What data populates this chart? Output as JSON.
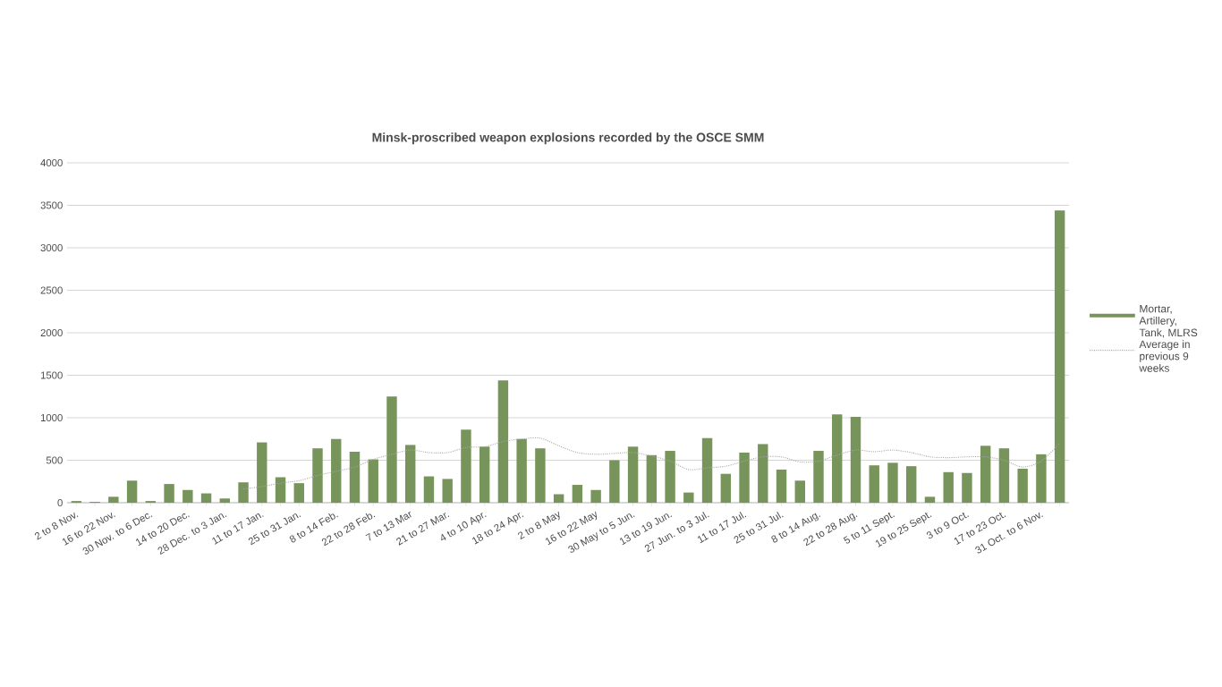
{
  "chart_data": {
    "type": "bar",
    "title": "Minsk-proscribed weapon explosions recorded  by the OSCE SMM",
    "categories": [
      "2 to 8 Nov.",
      null,
      "16 to 22 Nov.",
      null,
      "30 Nov. to 6 Dec.",
      null,
      "14 to 20 Dec.",
      null,
      "28 Dec. to 3 Jan.",
      null,
      "11 to 17 Jan.",
      null,
      "25 to 31 Jan.",
      null,
      "8 to 14 Feb.",
      null,
      "22 to 28 Feb.",
      null,
      "7 to 13 Mar",
      null,
      "21 to 27 Mar.",
      null,
      "4 to 10 Apr.",
      null,
      "18 to 24 Apr.",
      null,
      "2 to 8 May",
      null,
      "16 to 22 May",
      null,
      "30 May to 5 Jun.",
      null,
      "13 to 19 Jun.",
      null,
      "27 Jun. to 3 Jul.",
      null,
      "11 to 17 Jul.",
      null,
      "25 to 31 Jul.",
      null,
      "8 to 14 Aug.",
      null,
      "22 to 28 Aug.",
      null,
      "5 to 11 Sept.",
      null,
      "19 to 25 Sept.",
      null,
      "3 to 9 Oct.",
      null,
      "17 to 23 Oct.",
      null,
      "31 Oct. to 6 Nov.",
      null
    ],
    "series": [
      {
        "name": "Mortar, Artillery, Tank, MLRS",
        "color": "#77945a",
        "values": [
          20,
          10,
          70,
          260,
          20,
          220,
          150,
          110,
          50,
          240,
          710,
          300,
          230,
          640,
          750,
          600,
          510,
          1250,
          680,
          310,
          280,
          860,
          660,
          1440,
          750,
          640,
          100,
          210,
          150,
          500,
          660,
          560,
          610,
          120,
          760,
          340,
          590,
          690,
          390,
          260,
          610,
          1040,
          1010,
          440,
          470,
          430,
          70,
          360,
          350,
          670,
          640,
          400,
          570,
          3440
        ]
      },
      {
        "type": "line",
        "name": "Average in previous 9 weeks",
        "color": "#a6a6a6",
        "line_style": "dotted",
        "values": [
          null,
          null,
          null,
          null,
          null,
          null,
          null,
          null,
          null,
          160,
          190,
          230,
          260,
          320,
          370,
          420,
          510,
          570,
          620,
          590,
          590,
          650,
          660,
          720,
          750,
          760,
          670,
          590,
          570,
          580,
          590,
          550,
          490,
          390,
          410,
          430,
          490,
          540,
          540,
          480,
          490,
          560,
          620,
          600,
          620,
          590,
          540,
          530,
          540,
          540,
          500,
          420,
          490,
          700
        ]
      }
    ],
    "ylim": [
      0,
      4000
    ],
    "yticks": [
      0,
      500,
      1000,
      1500,
      2000,
      2500,
      3000,
      3500,
      4000
    ],
    "grid": "y",
    "legend": "right"
  }
}
